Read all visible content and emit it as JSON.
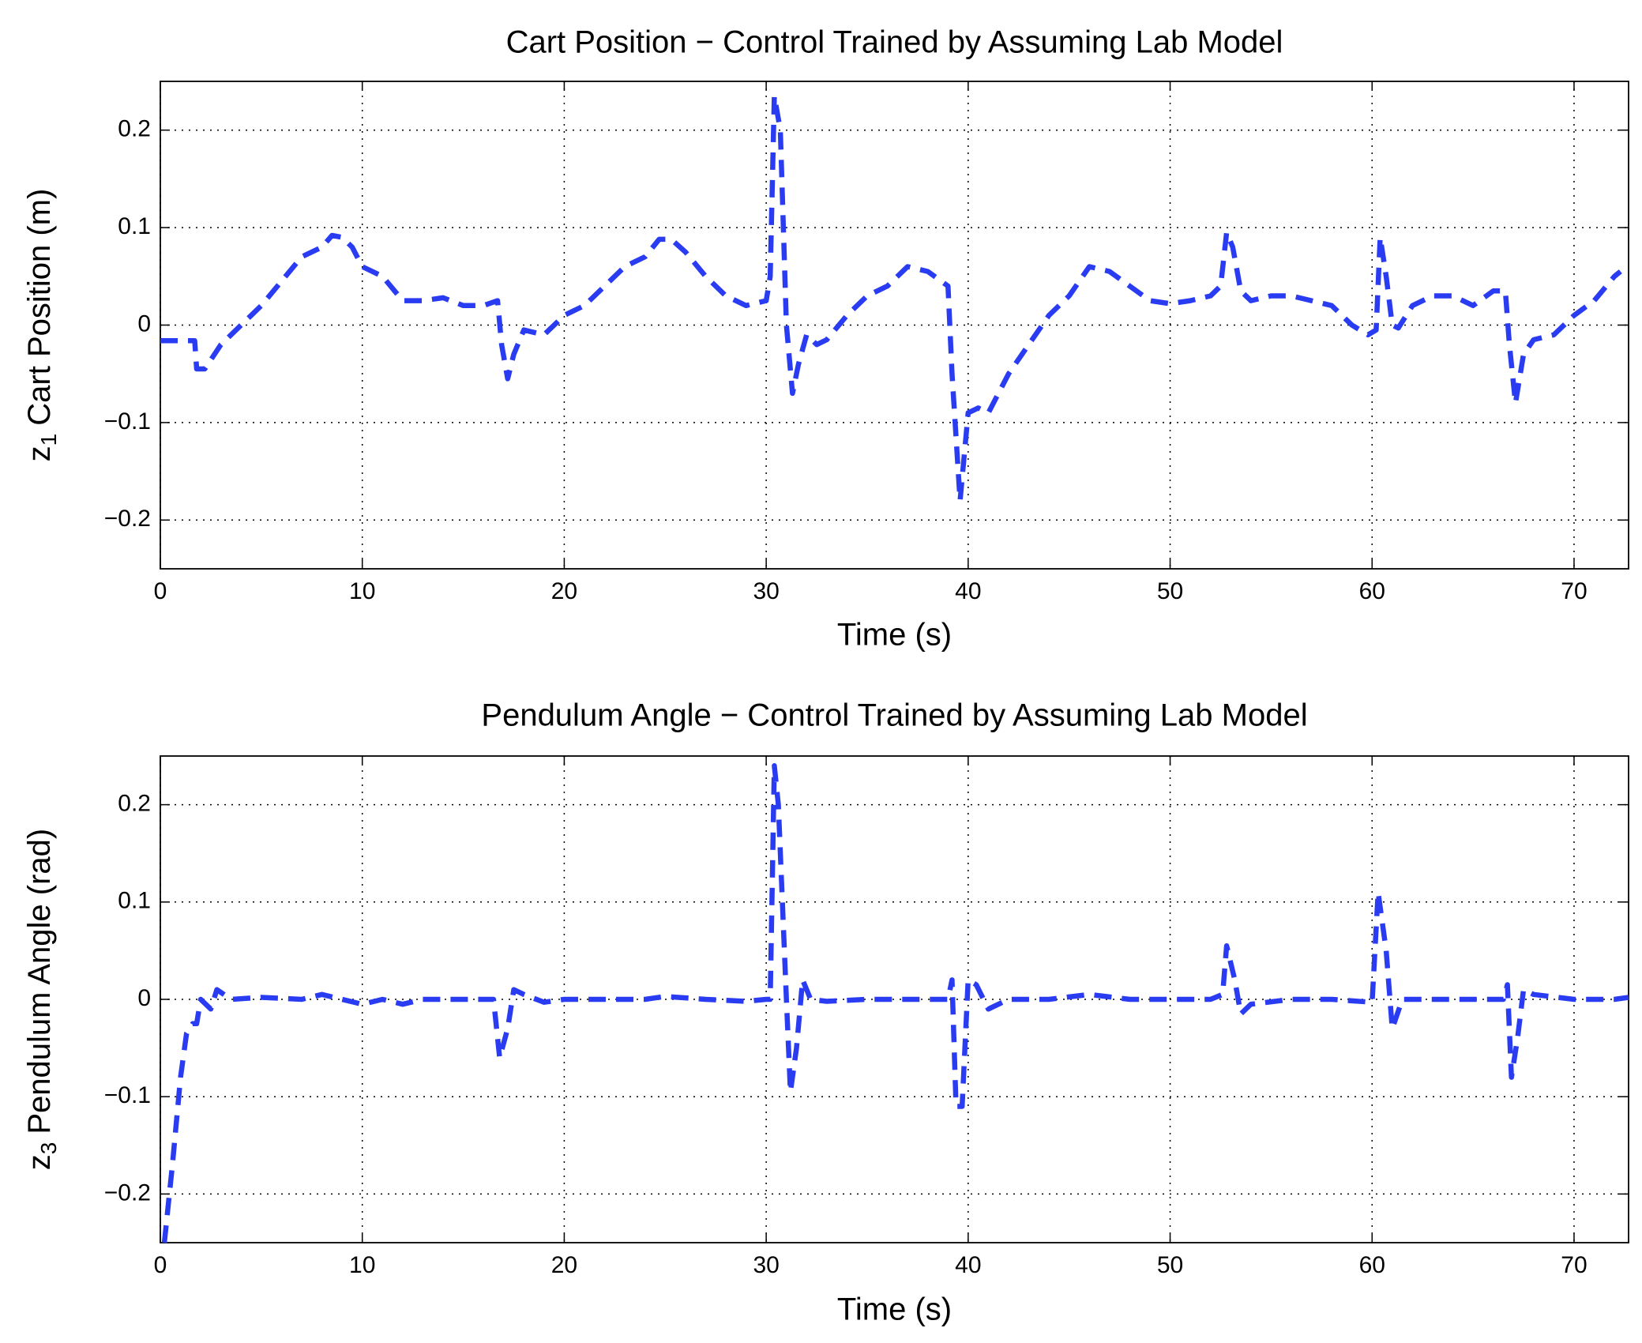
{
  "chart_data": [
    {
      "type": "line",
      "title": "Cart Position − Control Trained by Assuming Lab Model",
      "xlabel": "Time (s)",
      "ylabel": {
        "symbol": "z",
        "subscript": "1",
        "text": "Cart Position (m)"
      },
      "color": "#2a3cf2",
      "grid": true,
      "xlim": [
        0,
        72.7
      ],
      "ylim": [
        -0.25,
        0.25
      ],
      "xticks": [
        0,
        10,
        20,
        30,
        40,
        50,
        60,
        70
      ],
      "yticks": [
        {
          "value": -0.2,
          "label": "−0.2"
        },
        {
          "value": -0.1,
          "label": "−0.1"
        },
        0,
        0.1,
        0.2
      ],
      "x": [
        0,
        1.7,
        1.8,
        2.2,
        3,
        4,
        5,
        6,
        7,
        8,
        8.5,
        9,
        9.5,
        10,
        11,
        12,
        13,
        14,
        15,
        16,
        16.7,
        16.9,
        17.2,
        17.5,
        18,
        19,
        20,
        21,
        22,
        23,
        24,
        24.7,
        25.3,
        26,
        27,
        28,
        29,
        30,
        30.2,
        30.4,
        30.7,
        31,
        31.3,
        31.6,
        32,
        32.5,
        33,
        34,
        35,
        36,
        37,
        38,
        39,
        39.2,
        39.6,
        40,
        40.5,
        41,
        42,
        43,
        44,
        45,
        46,
        47,
        48,
        49,
        50,
        51,
        52,
        52.5,
        52.8,
        53.1,
        53.5,
        54,
        55,
        56,
        57,
        58,
        59,
        59.8,
        60.2,
        60.4,
        60.7,
        61,
        61.3,
        62,
        63,
        64,
        65,
        66,
        66.6,
        66.8,
        67.1,
        67.5,
        68,
        69,
        70,
        71,
        72,
        72.3
      ],
      "values": [
        -0.016,
        -0.016,
        -0.045,
        -0.045,
        -0.02,
        0,
        0.02,
        0.045,
        0.07,
        0.08,
        0.092,
        0.09,
        0.08,
        0.06,
        0.05,
        0.025,
        0.025,
        0.028,
        0.02,
        0.02,
        0.025,
        -0.02,
        -0.055,
        -0.03,
        -0.005,
        -0.01,
        0.01,
        0.02,
        0.04,
        0.06,
        0.07,
        0.088,
        0.088,
        0.075,
        0.05,
        0.03,
        0.02,
        0.025,
        0.05,
        0.235,
        0.2,
        0,
        -0.07,
        -0.04,
        -0.01,
        -0.02,
        -0.015,
        0.01,
        0.03,
        0.04,
        0.06,
        0.055,
        0.04,
        -0.05,
        -0.18,
        -0.09,
        -0.085,
        -0.09,
        -0.05,
        -0.02,
        0.01,
        0.03,
        0.06,
        0.055,
        0.04,
        0.025,
        0.022,
        0.025,
        0.03,
        0.04,
        0.095,
        0.08,
        0.035,
        0.025,
        0.03,
        0.03,
        0.025,
        0.02,
        0,
        -0.01,
        -0.005,
        0.09,
        0.05,
        0,
        -0.003,
        0.02,
        0.03,
        0.03,
        0.02,
        0.035,
        0.035,
        -0.02,
        -0.08,
        -0.03,
        -0.015,
        -0.01,
        0.01,
        0.025,
        0.05,
        0.055
      ]
    },
    {
      "type": "line",
      "title": "Pendulum Angle − Control Trained by Assuming Lab Model",
      "xlabel": "Time (s)",
      "ylabel": {
        "symbol": "z",
        "subscript": "3",
        "text": "Pendulum Angle (rad)"
      },
      "color": "#2a3cf2",
      "grid": true,
      "xlim": [
        0,
        72.7
      ],
      "ylim": [
        -0.25,
        0.25
      ],
      "xticks": [
        0,
        10,
        20,
        30,
        40,
        50,
        60,
        70
      ],
      "yticks": [
        {
          "value": -0.2,
          "label": "−0.2"
        },
        {
          "value": -0.1,
          "label": "−0.1"
        },
        0,
        0.1,
        0.2
      ],
      "x": [
        0.2,
        0.6,
        1,
        1.3,
        1.6,
        1.8,
        2,
        2.5,
        2.8,
        3.5,
        5,
        7,
        8,
        9,
        10,
        11,
        12,
        13,
        15,
        16.5,
        16.8,
        17.2,
        17.5,
        18,
        19,
        20,
        22,
        24,
        25,
        27,
        29,
        30,
        30.2,
        30.4,
        30.6,
        31,
        31.2,
        31.5,
        31.8,
        32.2,
        33,
        35,
        37,
        39,
        39.2,
        39.4,
        39.7,
        40,
        40.4,
        41,
        42,
        44,
        46,
        48,
        50,
        52,
        52.6,
        52.8,
        53.2,
        53.5,
        54,
        56,
        58,
        60,
        60.3,
        60.7,
        61,
        61.5,
        63,
        65,
        66.5,
        66.7,
        66.9,
        67.2,
        67.5,
        68,
        70,
        72,
        72.7
      ],
      "values": [
        -0.25,
        -0.17,
        -0.08,
        -0.035,
        -0.025,
        -0.025,
        0,
        -0.01,
        0.01,
        0,
        0.002,
        0,
        0.005,
        0,
        -0.005,
        0,
        -0.005,
        0,
        0,
        0,
        -0.06,
        -0.03,
        0.01,
        0.005,
        -0.003,
        0,
        0,
        0,
        0.003,
        0,
        -0.002,
        0,
        0,
        0.24,
        0.2,
        0,
        -0.095,
        -0.05,
        0.02,
        0,
        -0.002,
        0,
        0,
        0,
        0.02,
        -0.11,
        -0.11,
        0.02,
        0.015,
        -0.01,
        0,
        0,
        0.005,
        0,
        0,
        0,
        0.005,
        0.055,
        0.02,
        -0.015,
        -0.005,
        0,
        0,
        -0.003,
        0.11,
        0.05,
        -0.03,
        0,
        0,
        0,
        0,
        0.015,
        -0.08,
        -0.04,
        0.01,
        0.005,
        0,
        0,
        0.002
      ]
    }
  ]
}
